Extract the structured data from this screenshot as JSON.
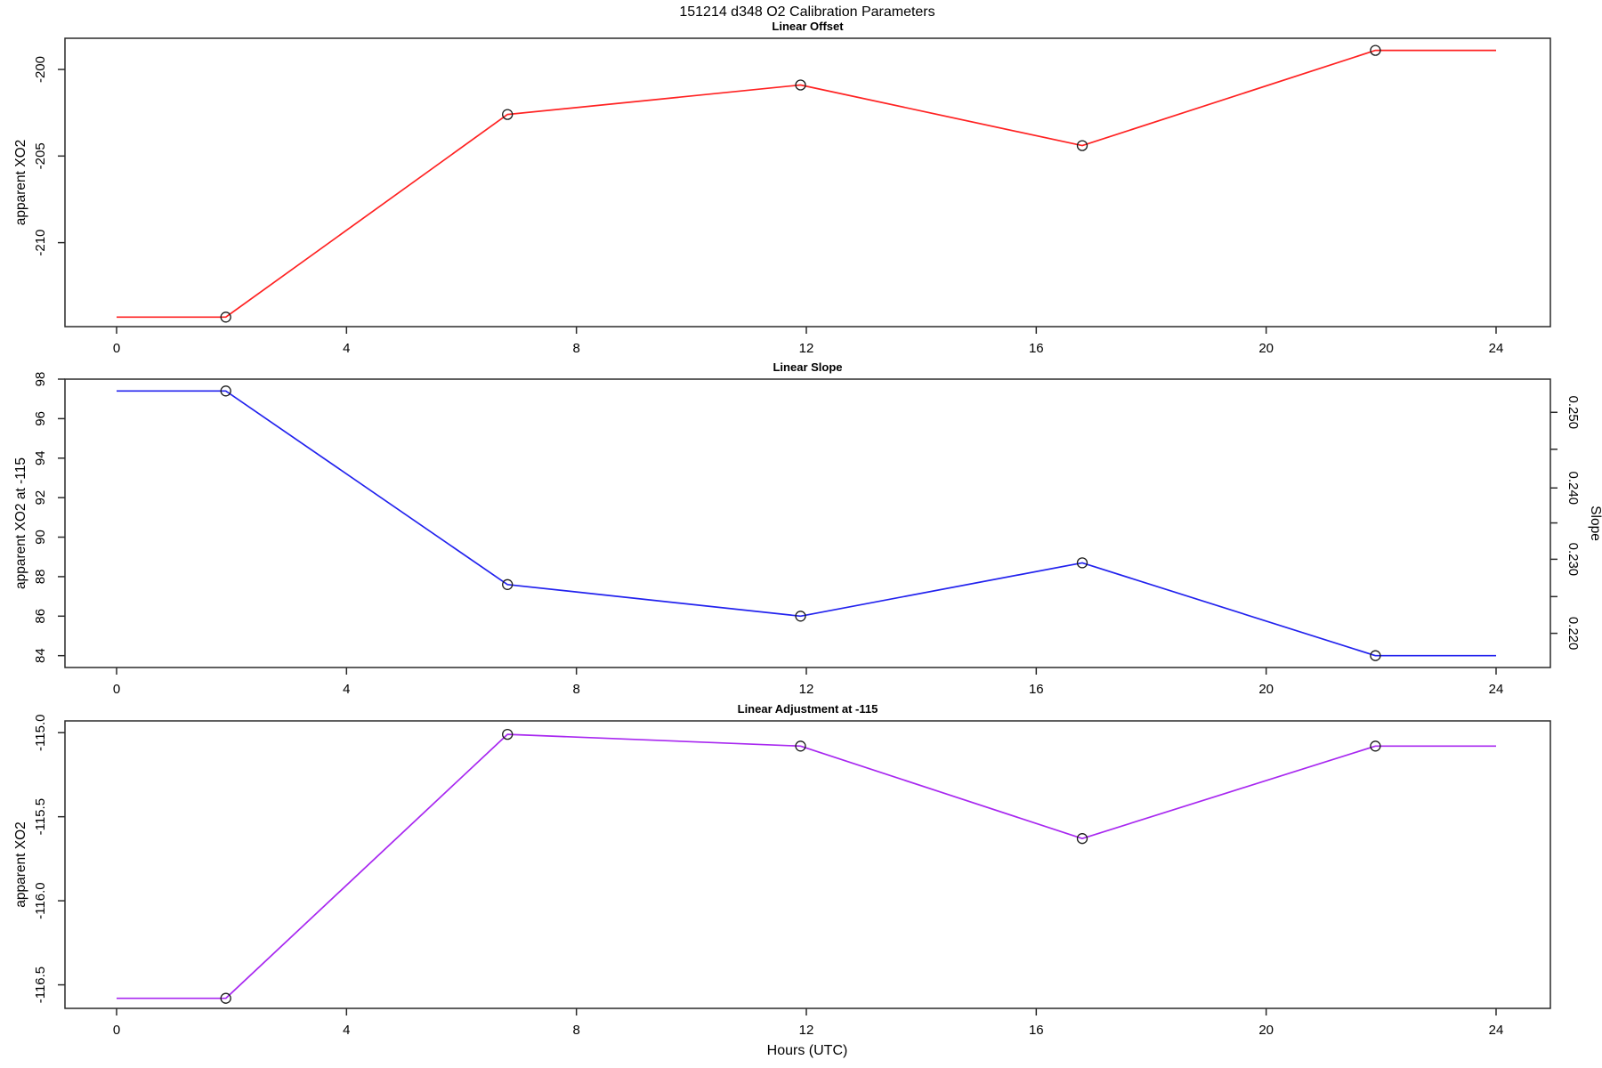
{
  "chart_data": {
    "type": "line",
    "main_title": "151214   d348   O2 Calibration Parameters",
    "xlabel": "Hours (UTC)",
    "x_axis": {
      "ticks": [
        0,
        4,
        8,
        12,
        16,
        20,
        24
      ],
      "lim": [
        -0.9,
        24.95
      ]
    },
    "sample_hours": [
      1.9,
      6.8,
      11.9,
      16.8,
      21.9
    ],
    "charts": [
      {
        "title": "Linear Offset",
        "ylabel": "apparent XO2",
        "color": "#ff2222",
        "ylim": [
          -214.85,
          -198.2
        ],
        "y_ticks": [
          {
            "v": -210,
            "label": "-210"
          },
          {
            "v": -205,
            "label": "-205"
          },
          {
            "v": -200,
            "label": "-200"
          }
        ],
        "points": [
          {
            "x": 0,
            "y": -214.3,
            "marker": false
          },
          {
            "x": 1.9,
            "y": -214.3,
            "marker": true
          },
          {
            "x": 6.8,
            "y": -202.6,
            "marker": true
          },
          {
            "x": 11.9,
            "y": -200.9,
            "marker": true
          },
          {
            "x": 16.8,
            "y": -204.4,
            "marker": true
          },
          {
            "x": 21.9,
            "y": -198.9,
            "marker": true
          },
          {
            "x": 24,
            "y": -198.9,
            "marker": false
          }
        ]
      },
      {
        "title": "Linear Slope",
        "ylabel": "apparent XO2 at -115",
        "color": "#2222ee",
        "ylim": [
          83.4,
          98.0
        ],
        "y_ticks": [
          {
            "v": 84,
            "label": "84"
          },
          {
            "v": 86,
            "label": "86"
          },
          {
            "v": 88,
            "label": "88"
          },
          {
            "v": 90,
            "label": "90"
          },
          {
            "v": 92,
            "label": "92"
          },
          {
            "v": 94,
            "label": "94"
          },
          {
            "v": 96,
            "label": "96"
          },
          {
            "v": 98,
            "label": "98"
          }
        ],
        "right_axis": {
          "label": "Slope",
          "ticks": [
            {
              "slope": 0.25,
              "label": "0.250",
              "left_value": 96.32
            },
            {
              "slope": 0.245,
              "label": "",
              "left_value": 94.45
            },
            {
              "slope": 0.24,
              "label": "0.240",
              "left_value": 92.49
            },
            {
              "slope": 0.235,
              "label": "",
              "left_value": 90.72
            },
            {
              "slope": 0.23,
              "label": "0.230",
              "left_value": 88.88
            },
            {
              "slope": 0.225,
              "label": "",
              "left_value": 86.99
            },
            {
              "slope": 0.22,
              "label": "0.220",
              "left_value": 85.13
            }
          ]
        },
        "points": [
          {
            "x": 0,
            "y": 97.4,
            "marker": false
          },
          {
            "x": 1.9,
            "y": 97.4,
            "marker": true
          },
          {
            "x": 6.8,
            "y": 87.6,
            "marker": true
          },
          {
            "x": 11.9,
            "y": 86.0,
            "marker": true
          },
          {
            "x": 16.8,
            "y": 88.7,
            "marker": true
          },
          {
            "x": 21.9,
            "y": 84.0,
            "marker": true
          },
          {
            "x": 24,
            "y": 84.0,
            "marker": false
          }
        ]
      },
      {
        "title": "Linear Adjustment at -115",
        "ylabel": "apparent XO2",
        "color": "#a828f0",
        "ylim": [
          -116.64,
          -114.93
        ],
        "y_ticks": [
          {
            "v": -116.5,
            "label": "-116.5"
          },
          {
            "v": -116.0,
            "label": "-116.0"
          },
          {
            "v": -115.5,
            "label": "-115.5"
          },
          {
            "v": -115.0,
            "label": "-115.0"
          }
        ],
        "points": [
          {
            "x": 0,
            "y": -116.58,
            "marker": false
          },
          {
            "x": 1.9,
            "y": -116.58,
            "marker": true
          },
          {
            "x": 6.8,
            "y": -115.01,
            "marker": true
          },
          {
            "x": 11.9,
            "y": -115.08,
            "marker": true
          },
          {
            "x": 16.8,
            "y": -115.63,
            "marker": true
          },
          {
            "x": 21.9,
            "y": -115.08,
            "marker": true
          },
          {
            "x": 24,
            "y": -115.08,
            "marker": false
          }
        ]
      }
    ]
  }
}
